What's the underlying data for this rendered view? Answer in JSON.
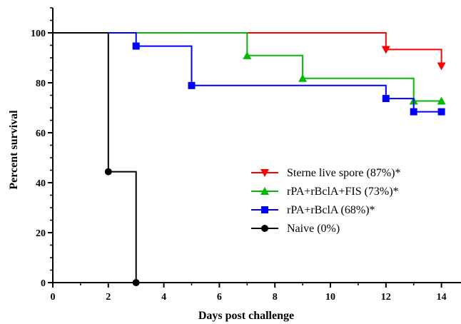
{
  "chart_data": {
    "type": "line",
    "step": true,
    "xlabel": "Days post challenge",
    "ylabel": "Percent survival",
    "xlim": [
      0,
      15
    ],
    "ylim": [
      0,
      110
    ],
    "xticks": [
      0,
      2,
      4,
      6,
      8,
      10,
      12,
      14
    ],
    "yticks": [
      0,
      20,
      40,
      60,
      80,
      100
    ],
    "grid": false,
    "legend_position": "center-right",
    "series": [
      {
        "name": "Sterne live spore (87%)*",
        "color": "#ff0000",
        "marker": "triangle-down",
        "steps": [
          [
            0,
            100
          ],
          [
            12,
            100
          ],
          [
            12,
            93.3
          ],
          [
            14,
            93.3
          ],
          [
            14,
            86.7
          ]
        ],
        "markers": [
          [
            12,
            93.3
          ],
          [
            14,
            86.7
          ]
        ]
      },
      {
        "name": "rPA+rBclA+FIS (73%)*",
        "color": "#00bb00",
        "marker": "triangle-up",
        "steps": [
          [
            0,
            100
          ],
          [
            7,
            100
          ],
          [
            7,
            90.9
          ],
          [
            9,
            90.9
          ],
          [
            9,
            81.8
          ],
          [
            13,
            81.8
          ],
          [
            13,
            72.7
          ],
          [
            14,
            72.7
          ]
        ],
        "markers": [
          [
            7,
            90.9
          ],
          [
            9,
            81.8
          ],
          [
            13,
            72.7
          ],
          [
            14,
            72.7
          ]
        ]
      },
      {
        "name": "rPA+rBclA (68%)*",
        "color": "#0000ff",
        "marker": "square",
        "steps": [
          [
            0,
            100
          ],
          [
            3,
            100
          ],
          [
            3,
            94.7
          ],
          [
            5,
            94.7
          ],
          [
            5,
            78.9
          ],
          [
            12,
            78.9
          ],
          [
            12,
            73.7
          ],
          [
            13,
            73.7
          ],
          [
            13,
            68.4
          ],
          [
            14,
            68.4
          ]
        ],
        "markers": [
          [
            3,
            94.7
          ],
          [
            5,
            78.9
          ],
          [
            12,
            73.7
          ],
          [
            13,
            68.4
          ],
          [
            14,
            68.4
          ]
        ]
      },
      {
        "name": "Naive (0%)",
        "color": "#000000",
        "marker": "circle",
        "steps": [
          [
            0,
            100
          ],
          [
            2,
            100
          ],
          [
            2,
            44.4
          ],
          [
            3,
            44.4
          ],
          [
            3,
            0
          ]
        ],
        "markers": [
          [
            2,
            44.4
          ],
          [
            3,
            0
          ]
        ]
      }
    ]
  }
}
